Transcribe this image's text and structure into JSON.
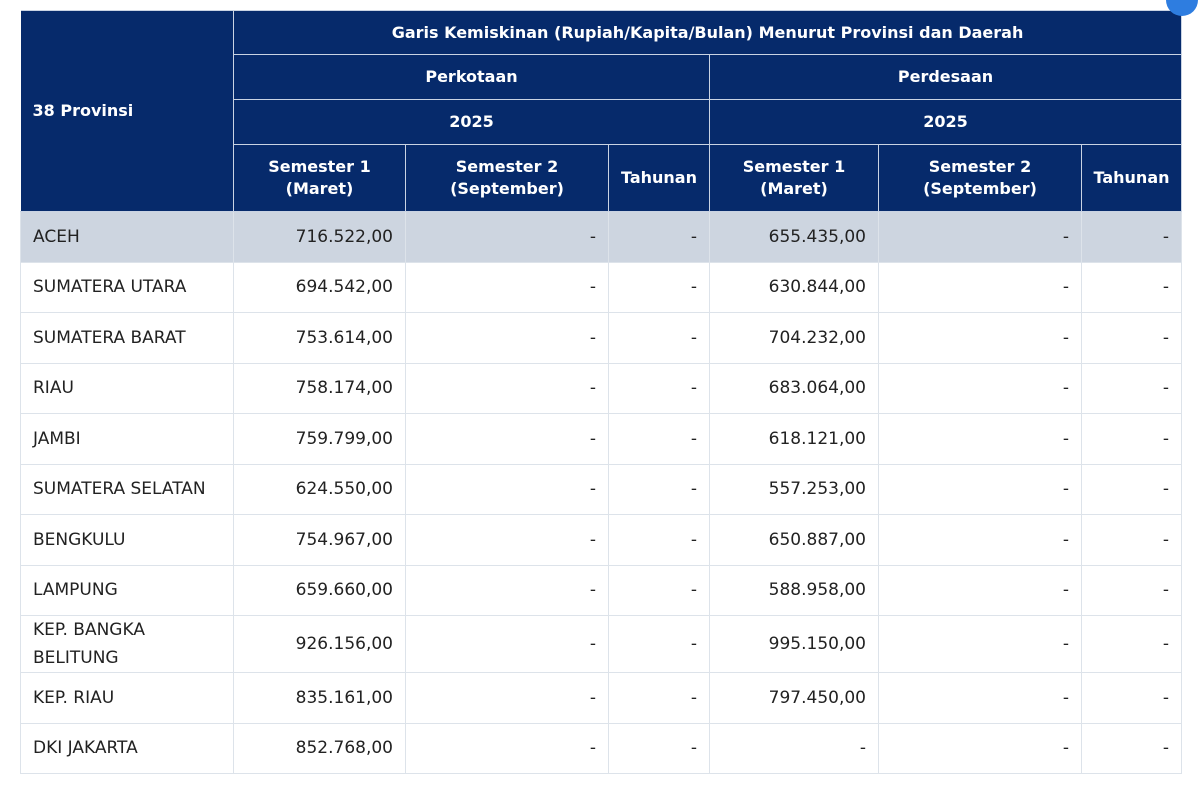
{
  "table": {
    "corner": "38 Provinsi",
    "title": "Garis Kemiskinan (Rupiah/Kapita/Bulan) Menurut Provinsi dan Daerah",
    "regions": [
      {
        "name": "Perkotaan",
        "year": "2025",
        "columns": [
          [
            "Semester 1",
            "(Maret)"
          ],
          [
            "Semester 2",
            "(September)"
          ],
          [
            "Tahunan"
          ]
        ]
      },
      {
        "name": "Perdesaan",
        "year": "2025",
        "columns": [
          [
            "Semester 1",
            "(Maret)"
          ],
          [
            "Semester 2",
            "(September)"
          ],
          [
            "Tahunan"
          ]
        ]
      }
    ],
    "rows": [
      [
        "ACEH",
        "716.522,00",
        "-",
        "-",
        "655.435,00",
        "-",
        "-"
      ],
      [
        "SUMATERA UTARA",
        "694.542,00",
        "-",
        "-",
        "630.844,00",
        "-",
        "-"
      ],
      [
        "SUMATERA BARAT",
        "753.614,00",
        "-",
        "-",
        "704.232,00",
        "-",
        "-"
      ],
      [
        "RIAU",
        "758.174,00",
        "-",
        "-",
        "683.064,00",
        "-",
        "-"
      ],
      [
        "JAMBI",
        "759.799,00",
        "-",
        "-",
        "618.121,00",
        "-",
        "-"
      ],
      [
        "SUMATERA SELATAN",
        "624.550,00",
        "-",
        "-",
        "557.253,00",
        "-",
        "-"
      ],
      [
        "BENGKULU",
        "754.967,00",
        "-",
        "-",
        "650.887,00",
        "-",
        "-"
      ],
      [
        "LAMPUNG",
        "659.660,00",
        "-",
        "-",
        "588.958,00",
        "-",
        "-"
      ],
      [
        "KEP. BANGKA BELITUNG",
        "926.156,00",
        "-",
        "-",
        "995.150,00",
        "-",
        "-"
      ],
      [
        "KEP. RIAU",
        "835.161,00",
        "-",
        "-",
        "797.450,00",
        "-",
        "-"
      ],
      [
        "DKI JAKARTA",
        "852.768,00",
        "-",
        "-",
        "-",
        "-",
        "-"
      ]
    ]
  }
}
